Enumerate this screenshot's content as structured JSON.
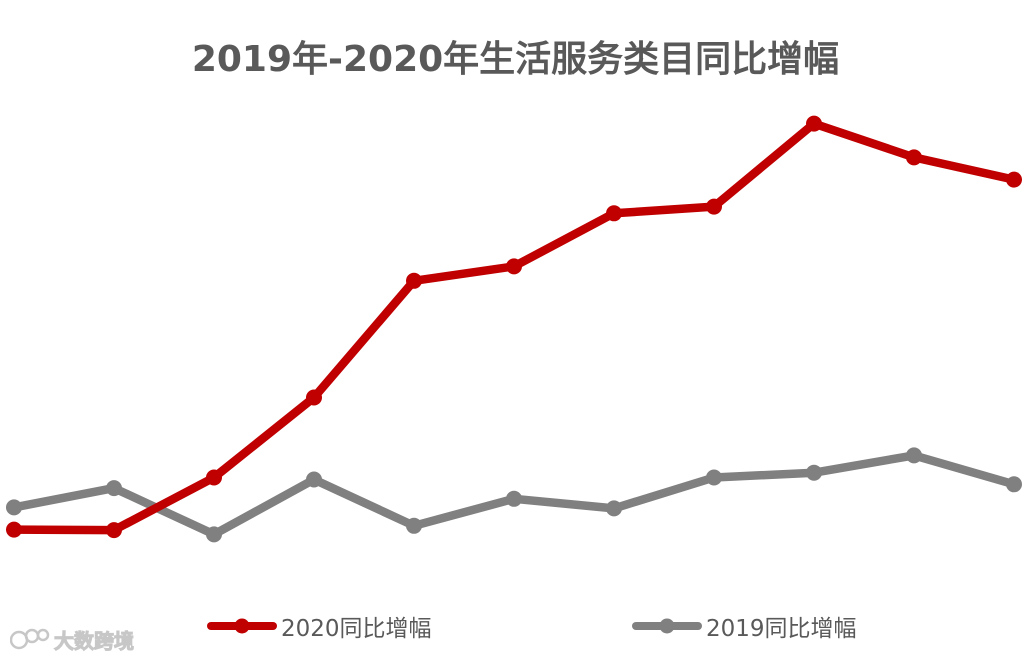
{
  "chart_data": {
    "type": "line",
    "title": "2019年-2020年生活服务类目同比增幅",
    "x": [
      1,
      2,
      3,
      4,
      5,
      6,
      7,
      8,
      9,
      10,
      11
    ],
    "series": [
      {
        "name": "2020同比增幅",
        "color": "#C00000",
        "values": [
          0.3,
          0.25,
          5.7,
          14.0,
          26.1,
          27.6,
          33.1,
          33.8,
          42.4,
          38.9,
          36.6
        ]
      },
      {
        "name": "2019同比增幅",
        "color": "#808080",
        "values": [
          2.6,
          4.6,
          -0.2,
          5.5,
          0.7,
          3.5,
          2.5,
          5.7,
          6.2,
          8.0,
          5.0
        ]
      }
    ],
    "ylim": [
      -7,
      49
    ],
    "grid": false,
    "legend_position": "bottom"
  },
  "watermark": {
    "text": "大数跨境",
    "logo_icon": "dashuju-logo-icon"
  }
}
